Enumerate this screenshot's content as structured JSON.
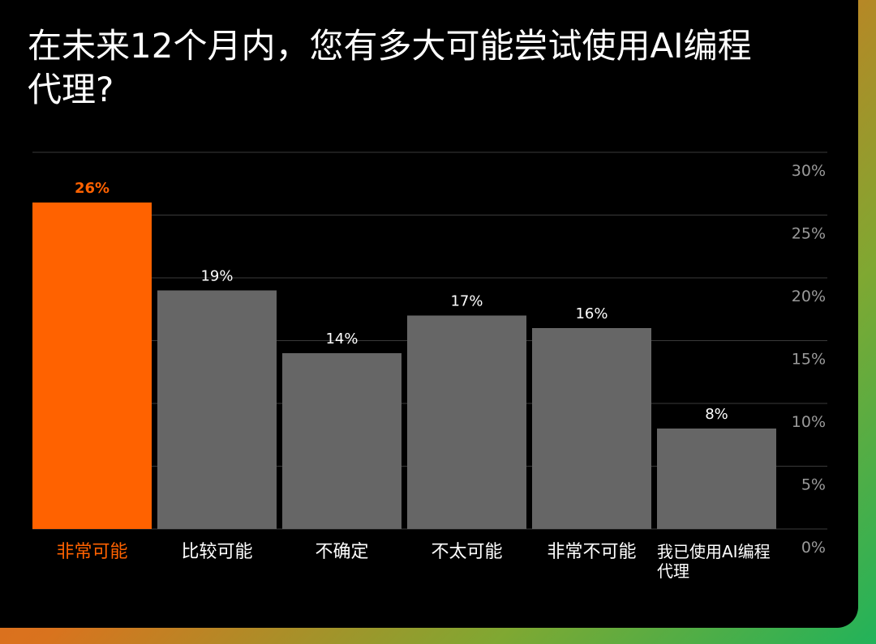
{
  "title": "在未来12个月内，您有多大可能尝试使用AI编程代理?",
  "colors": {
    "background": "#000000",
    "highlight": "#ff6200",
    "bar": "#666666",
    "grid": "#3a3a3a",
    "tick": "#9a9a9a",
    "value_label": "#ffffff"
  },
  "chart_data": {
    "type": "bar",
    "title": "在未来12个月内，您有多大可能尝试使用AI编程代理?",
    "xlabel": "",
    "ylabel": "",
    "categories": [
      "非常可能",
      "比较可能",
      "不确定",
      "不太可能",
      "非常不可能",
      "我已使用AI编程代理"
    ],
    "category_lines": [
      [
        "非常可能"
      ],
      [
        "比较可能"
      ],
      [
        "不确定"
      ],
      [
        "不太可能"
      ],
      [
        "非常不可能"
      ],
      [
        "我已使用AI编程",
        "代理"
      ]
    ],
    "values": [
      26,
      19,
      14,
      17,
      16,
      8
    ],
    "value_labels": [
      "26%",
      "19%",
      "14%",
      "17%",
      "16%",
      "8%"
    ],
    "highlight_index": 0,
    "ylim": [
      0,
      30
    ],
    "yticks": [
      0,
      5,
      10,
      15,
      20,
      25,
      30
    ],
    "ytick_labels": [
      "0%",
      "5%",
      "10%",
      "15%",
      "20%",
      "25%",
      "30%"
    ],
    "y_axis_position": "right",
    "grid": true,
    "legend": "none"
  }
}
